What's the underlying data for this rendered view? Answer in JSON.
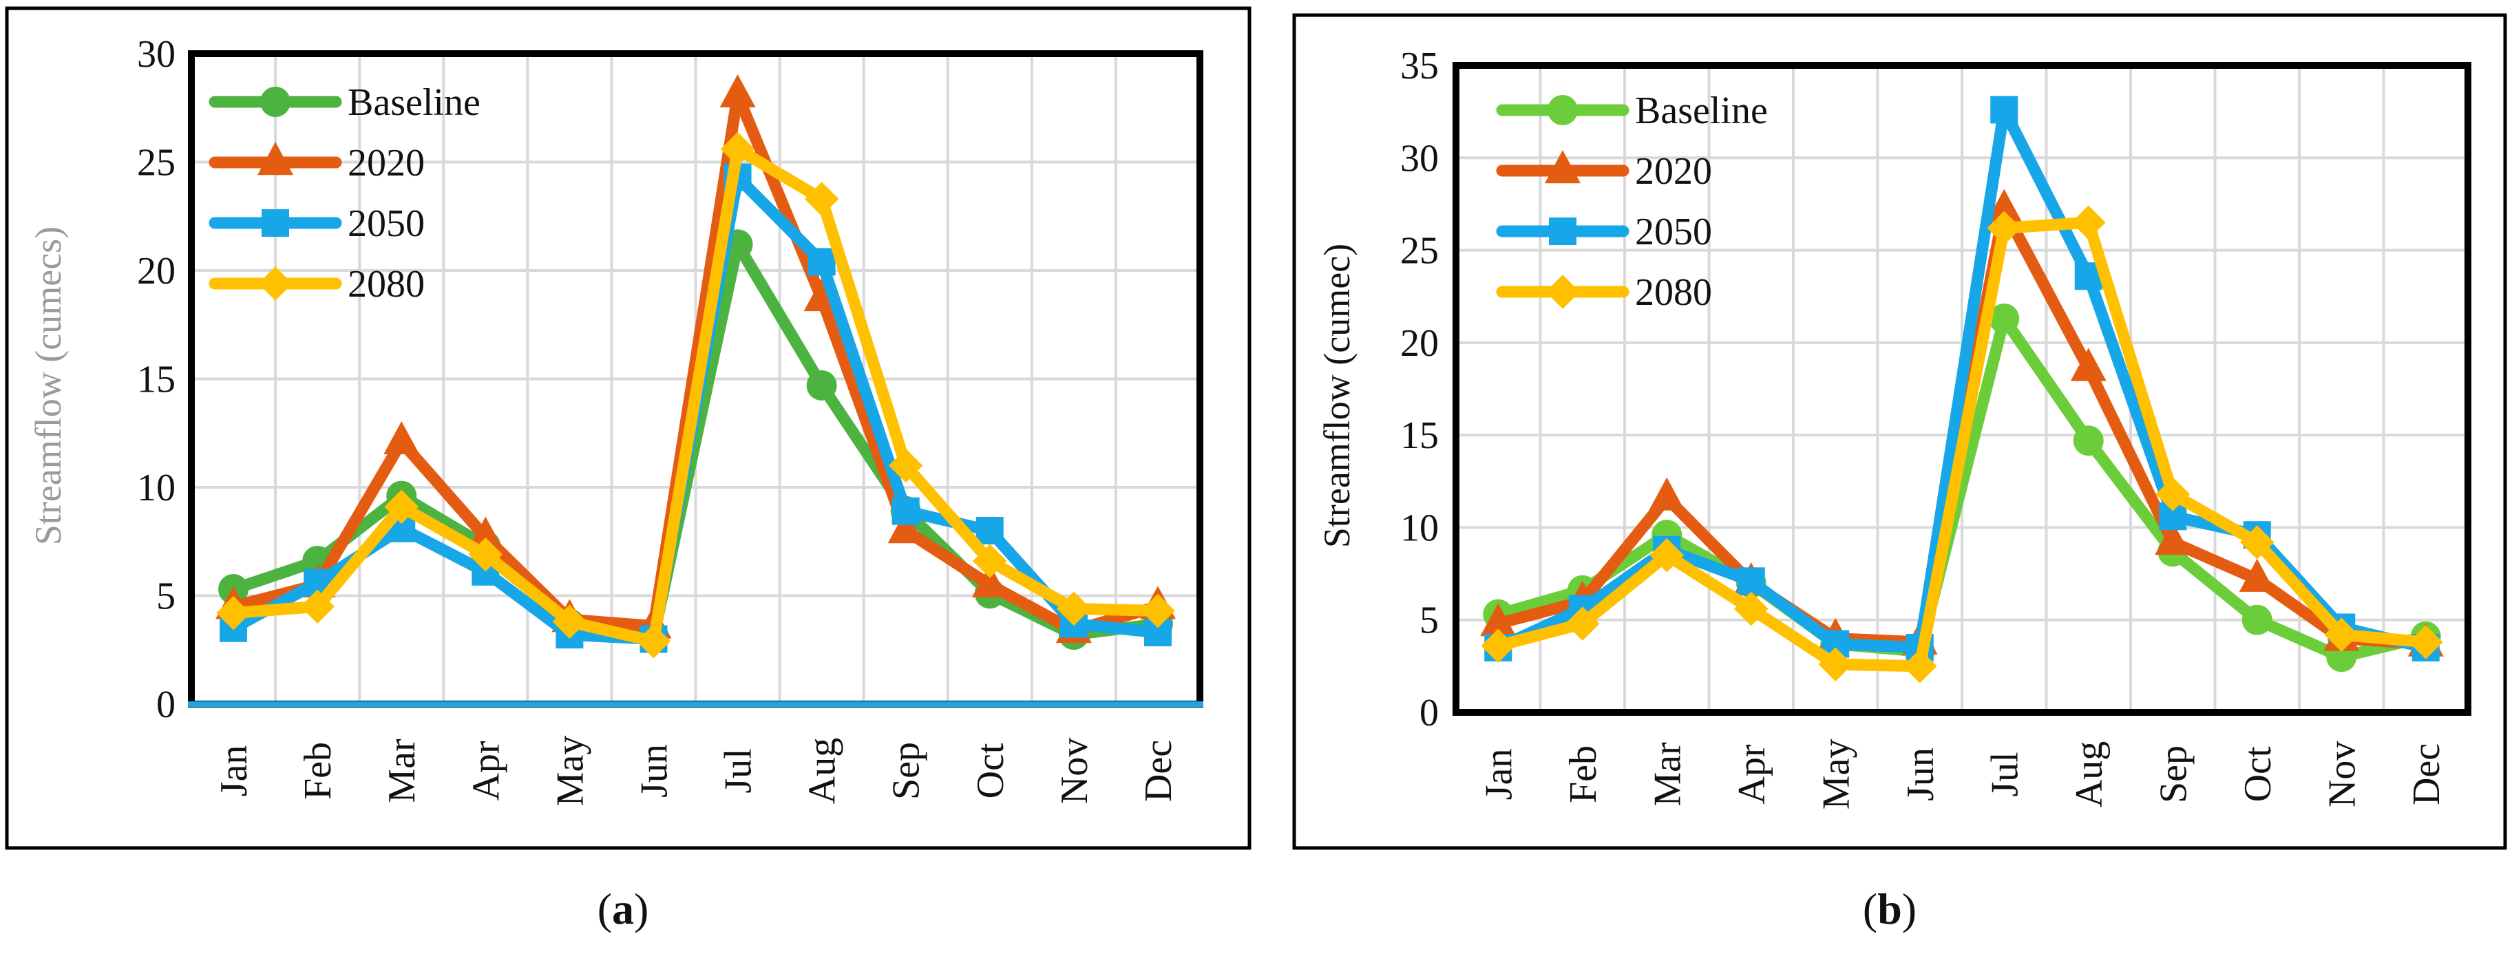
{
  "figure": {
    "panels": [
      "a",
      "b"
    ]
  },
  "chart_data": [
    {
      "type": "line",
      "panel": "a",
      "caption": "a",
      "title": "",
      "xlabel": "",
      "ylabel": "Streamflow (cumecs)",
      "ylabel_color": "#9a9a9a",
      "ylim": [
        0,
        30
      ],
      "yticks": [
        0,
        5,
        10,
        15,
        20,
        25,
        30
      ],
      "grid": true,
      "legend_position": "top-left",
      "categories": [
        "Jan",
        "Feb",
        "Mar",
        "Apr",
        "May",
        "Jun",
        "Jul",
        "Aug",
        "Sep",
        "Oct",
        "Nov",
        "Dec"
      ],
      "series": [
        {
          "name": "Baseline",
          "color": "#4cb340",
          "marker": "circle",
          "values": [
            5.3,
            6.6,
            9.6,
            7.3,
            3.7,
            3.1,
            21.2,
            14.7,
            8.9,
            5.1,
            3.2,
            3.7
          ]
        },
        {
          "name": "2020",
          "color": "#e45c12",
          "marker": "triangle",
          "values": [
            4.5,
            5.5,
            12.1,
            7.7,
            3.9,
            3.6,
            28.1,
            18.7,
            8.0,
            5.5,
            3.4,
            4.5
          ]
        },
        {
          "name": "2050",
          "color": "#17a6e8",
          "marker": "square",
          "values": [
            3.5,
            5.6,
            8.1,
            6.1,
            3.2,
            3.0,
            24.3,
            20.4,
            8.9,
            8.0,
            3.7,
            3.3
          ]
        },
        {
          "name": "2080",
          "color": "#ffc000",
          "marker": "diamond",
          "values": [
            4.2,
            4.5,
            9.1,
            6.9,
            3.8,
            2.9,
            25.6,
            23.3,
            11.0,
            6.6,
            4.4,
            4.3
          ]
        }
      ]
    },
    {
      "type": "line",
      "panel": "b",
      "caption": "b",
      "title": "",
      "xlabel": "",
      "ylabel": "Streamflow (cumec)",
      "ylabel_color": "#111111",
      "ylim": [
        0,
        35
      ],
      "yticks": [
        0,
        5,
        10,
        15,
        20,
        25,
        30,
        35
      ],
      "grid": true,
      "legend_position": "top-left",
      "categories": [
        "Jan",
        "Feb",
        "Mar",
        "Apr",
        "May",
        "Jun",
        "Jul",
        "Aug",
        "Sep",
        "Oct",
        "Nov",
        "Dec"
      ],
      "series": [
        {
          "name": "Baseline",
          "color": "#6ccd3a",
          "marker": "circle",
          "values": [
            5.3,
            6.6,
            9.6,
            7.0,
            3.7,
            3.3,
            21.3,
            14.7,
            8.7,
            5.0,
            3.0,
            4.1
          ]
        },
        {
          "name": "2020",
          "color": "#e45c12",
          "marker": "triangle",
          "values": [
            4.8,
            6.0,
            11.6,
            7.0,
            4.0,
            3.8,
            27.2,
            18.6,
            9.2,
            7.2,
            4.0,
            3.7
          ]
        },
        {
          "name": "2050",
          "color": "#17a6e8",
          "marker": "square",
          "values": [
            3.5,
            5.6,
            8.8,
            7.1,
            3.7,
            3.5,
            32.6,
            23.6,
            10.6,
            9.6,
            4.6,
            3.5
          ]
        },
        {
          "name": "2080",
          "color": "#ffc000",
          "marker": "diamond",
          "values": [
            3.6,
            4.8,
            8.5,
            5.6,
            2.6,
            2.5,
            26.2,
            26.5,
            11.8,
            9.2,
            4.2,
            3.8
          ]
        }
      ]
    }
  ]
}
